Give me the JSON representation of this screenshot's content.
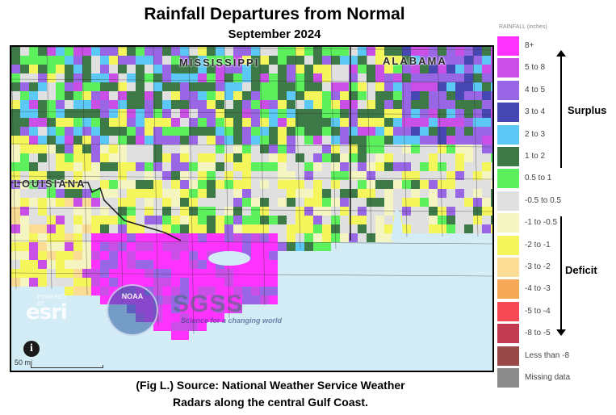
{
  "header": {
    "title": "Rainfall Departures from Normal",
    "subtitle": "September 2024"
  },
  "map": {
    "state_labels": [
      "MISSISSIPPI",
      "ALABAMA",
      "LOUISIANA"
    ],
    "scale_label": "50 mi",
    "info_icon": "info-icon",
    "attribution_logos": {
      "esri_small": "POWERED BY",
      "esri": "esri",
      "noaa": "NOAA",
      "agency": "SGSS",
      "agency_tagline": "Science for a changing world"
    }
  },
  "legend": {
    "title": "RAINFALL (inches)",
    "items": [
      {
        "label": "8+",
        "color": "#ff33ff"
      },
      {
        "label": "5 to 8",
        "color": "#c94fe6"
      },
      {
        "label": "4 to 5",
        "color": "#9966e6"
      },
      {
        "label": "3 to 4",
        "color": "#4747b3"
      },
      {
        "label": "2 to 3",
        "color": "#5cc8f5"
      },
      {
        "label": "1 to 2",
        "color": "#3d7a47"
      },
      {
        "label": "0.5 to 1",
        "color": "#5cf05c"
      },
      {
        "label": "-0.5 to 0.5",
        "color": "#e0e0e0"
      },
      {
        "label": "-1 to -0.5",
        "color": "#f5f5c2"
      },
      {
        "label": "-2 to -1",
        "color": "#f5f55c"
      },
      {
        "label": "-3 to -2",
        "color": "#fadc94"
      },
      {
        "label": "-4 to -3",
        "color": "#f5a855"
      },
      {
        "label": "-5 to -4",
        "color": "#f54a55"
      },
      {
        "label": "-8 to -5",
        "color": "#c23b50"
      },
      {
        "label": "Less than -8",
        "color": "#994848"
      },
      {
        "label": "Missing data",
        "color": "#8c8c8c"
      }
    ],
    "surplus_label": "Surplus",
    "deficit_label": "Deficit"
  },
  "caption": {
    "line1": "(Fig L.) Source: National Weather Service Weather",
    "line2": "Radars along the central Gulf Coast."
  }
}
